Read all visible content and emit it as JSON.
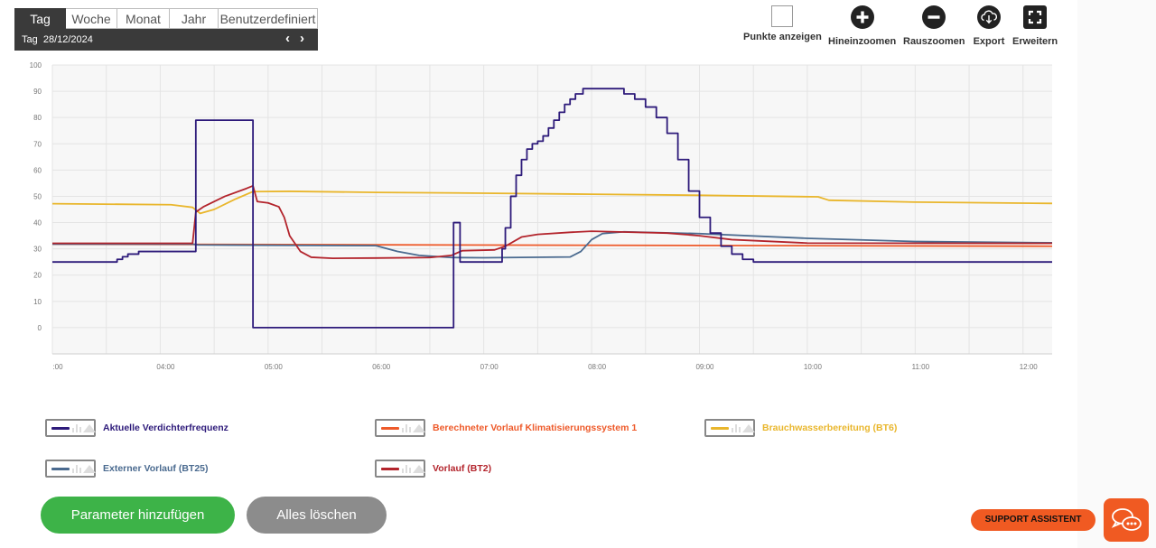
{
  "period": {
    "tabs": [
      "Tag",
      "Woche",
      "Monat",
      "Jahr",
      "Benutzerdefiniert"
    ],
    "active": "Tag",
    "date_label": "Tag  28/12/2024",
    "prev": "‹",
    "next": "›"
  },
  "toolbar": {
    "show_points": "Punkte anzeigen",
    "zoom_in": "Hineinzoomen",
    "zoom_out": "Rauszoomen",
    "export": "Export",
    "expand": "Erweitern"
  },
  "chart_data": {
    "type": "line",
    "x_tick_labels": [
      ":00",
      "04:00",
      "05:00",
      "06:00",
      "07:00",
      "08:00",
      "09:00",
      "10:00",
      "11:00",
      "12:00"
    ],
    "x_ticks": [
      3.0,
      4.0,
      5.0,
      6.0,
      7.0,
      8.0,
      9.0,
      10.0,
      11.0,
      12.0
    ],
    "xlim": [
      3.0,
      12.27
    ],
    "ylim": [
      -10,
      100
    ],
    "y_ticks": [
      0,
      10,
      20,
      30,
      40,
      50,
      60,
      70,
      80,
      90,
      100
    ],
    "grid": true,
    "colors": {
      "verdichter": "#2d1a7a",
      "berechnet": "#ee5a2a",
      "brauchwasser": "#e9b62c",
      "extern": "#4a6a8f",
      "vorlauf": "#b3242c"
    },
    "series": [
      {
        "name": "Aktuelle Verdichterfrequenz",
        "step": true,
        "points": [
          [
            3.0,
            25
          ],
          [
            3.55,
            25
          ],
          [
            3.6,
            26
          ],
          [
            3.65,
            27
          ],
          [
            3.7,
            28
          ],
          [
            3.8,
            29
          ],
          [
            4.3,
            29
          ],
          [
            4.33,
            79
          ],
          [
            4.83,
            79
          ],
          [
            4.86,
            0
          ],
          [
            6.7,
            0
          ],
          [
            6.72,
            40
          ],
          [
            6.75,
            40
          ],
          [
            6.78,
            25
          ],
          [
            7.15,
            25
          ],
          [
            7.17,
            30
          ],
          [
            7.2,
            38
          ],
          [
            7.25,
            50
          ],
          [
            7.3,
            58
          ],
          [
            7.35,
            64
          ],
          [
            7.4,
            68
          ],
          [
            7.45,
            70
          ],
          [
            7.5,
            71
          ],
          [
            7.55,
            73
          ],
          [
            7.6,
            76
          ],
          [
            7.65,
            79
          ],
          [
            7.7,
            82
          ],
          [
            7.75,
            85
          ],
          [
            7.8,
            87
          ],
          [
            7.85,
            89
          ],
          [
            7.92,
            91
          ],
          [
            8.2,
            91
          ],
          [
            8.3,
            89
          ],
          [
            8.4,
            87
          ],
          [
            8.5,
            84
          ],
          [
            8.6,
            80
          ],
          [
            8.7,
            74
          ],
          [
            8.8,
            64
          ],
          [
            8.9,
            52
          ],
          [
            9.0,
            42
          ],
          [
            9.1,
            36
          ],
          [
            9.2,
            31
          ],
          [
            9.3,
            28
          ],
          [
            9.4,
            26
          ],
          [
            9.5,
            25
          ],
          [
            12.27,
            25
          ]
        ]
      },
      {
        "name": "Berechneter Vorlauf Klimatisierungssystem 1",
        "points": [
          [
            3.0,
            31.8
          ],
          [
            12.27,
            31
          ]
        ]
      },
      {
        "name": "Brauchwasserbereitung (BT6)",
        "points": [
          [
            3.0,
            47.2
          ],
          [
            4.1,
            46.8
          ],
          [
            4.3,
            45.8
          ],
          [
            4.37,
            43.5
          ],
          [
            4.5,
            45
          ],
          [
            4.7,
            49
          ],
          [
            4.86,
            51.8
          ],
          [
            5.2,
            51.9
          ],
          [
            6.0,
            51.5
          ],
          [
            7.0,
            51.2
          ],
          [
            8.0,
            50.8
          ],
          [
            9.0,
            50.4
          ],
          [
            10.1,
            49.8
          ],
          [
            10.2,
            48.5
          ],
          [
            11.0,
            47.8
          ],
          [
            12.27,
            47.3
          ]
        ]
      },
      {
        "name": "Externer Vorlauf (BT25)",
        "points": [
          [
            3.0,
            31.8
          ],
          [
            4.3,
            31.8
          ],
          [
            4.35,
            31.5
          ],
          [
            6.0,
            31.2
          ],
          [
            6.2,
            29
          ],
          [
            6.4,
            27.5
          ],
          [
            6.7,
            26.7
          ],
          [
            7.0,
            26.6
          ],
          [
            7.8,
            26.9
          ],
          [
            7.9,
            29
          ],
          [
            8.0,
            33.5
          ],
          [
            8.1,
            35.8
          ],
          [
            8.3,
            36.5
          ],
          [
            9.0,
            35.8
          ],
          [
            10.0,
            34
          ],
          [
            11.0,
            32.8
          ],
          [
            12.27,
            32.3
          ]
        ]
      },
      {
        "name": "Vorlauf (BT2)",
        "points": [
          [
            3.0,
            32.1
          ],
          [
            4.3,
            32.1
          ],
          [
            4.33,
            44
          ],
          [
            4.4,
            46
          ],
          [
            4.6,
            50
          ],
          [
            4.8,
            53
          ],
          [
            4.86,
            54
          ],
          [
            4.9,
            48
          ],
          [
            5.0,
            47.5
          ],
          [
            5.1,
            46
          ],
          [
            5.15,
            42
          ],
          [
            5.2,
            35
          ],
          [
            5.3,
            29
          ],
          [
            5.4,
            26.8
          ],
          [
            5.6,
            26.4
          ],
          [
            6.0,
            26.5
          ],
          [
            6.5,
            26.7
          ],
          [
            6.7,
            27.5
          ],
          [
            6.8,
            29.3
          ],
          [
            7.1,
            29.6
          ],
          [
            7.2,
            31
          ],
          [
            7.35,
            34.5
          ],
          [
            7.5,
            35.5
          ],
          [
            7.8,
            36.3
          ],
          [
            8.0,
            36.7
          ],
          [
            8.3,
            36.4
          ],
          [
            8.7,
            36
          ],
          [
            9.0,
            35
          ],
          [
            9.3,
            33.5
          ],
          [
            10.0,
            32.2
          ],
          [
            12.27,
            32.1
          ]
        ]
      }
    ]
  },
  "legend": [
    {
      "label": "Aktuelle Verdichterfrequenz",
      "color": "#2d1a7a"
    },
    {
      "label": "Berechneter Vorlauf Klimatisierungssystem 1",
      "color": "#ee5a2a"
    },
    {
      "label": "Brauchwasserbereitung (BT6)",
      "color": "#e9b62c"
    },
    {
      "label": "Externer Vorlauf (BT25)",
      "color": "#4a6a8f"
    },
    {
      "label": "Vorlauf (BT2)",
      "color": "#b3242c"
    }
  ],
  "buttons": {
    "add_parameter": "Parameter hinzufügen",
    "clear_all": "Alles löschen",
    "support": "SUPPORT ASSISTENT"
  }
}
